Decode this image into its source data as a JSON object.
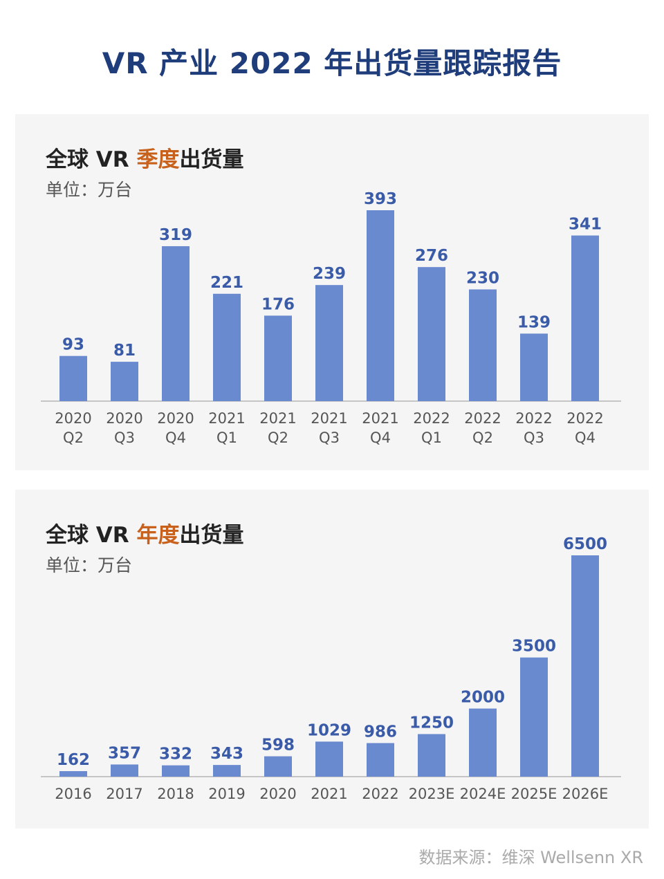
{
  "page_title": "VR 产业 2022 年出货量跟踪报告",
  "source": "数据来源：维深 Wellsenn XR",
  "colors": {
    "bar": "#6a8ad0",
    "label": "#3a5ba8",
    "highlight": "#c8611b",
    "title": "#1f3d7a"
  },
  "chart_data": [
    {
      "type": "bar",
      "title_prefix": "全球 VR ",
      "title_highlight": "季度",
      "title_suffix": "出货量",
      "unit": "单位：万台",
      "categories": [
        "2020\nQ2",
        "2020\nQ3",
        "2020\nQ4",
        "2021\nQ1",
        "2021\nQ2",
        "2021\nQ3",
        "2021\nQ4",
        "2022\nQ1",
        "2022\nQ2",
        "2022\nQ3",
        "2022\nQ4"
      ],
      "values": [
        93,
        81,
        319,
        221,
        176,
        239,
        393,
        276,
        230,
        139,
        341
      ]
    },
    {
      "type": "bar",
      "title_prefix": "全球 VR ",
      "title_highlight": "年度",
      "title_suffix": "出货量",
      "unit": "单位：万台",
      "categories": [
        "2016",
        "2017",
        "2018",
        "2019",
        "2020",
        "2021",
        "2022",
        "2023E",
        "2024E",
        "2025E",
        "2026E"
      ],
      "values": [
        162,
        357,
        332,
        343,
        598,
        1029,
        986,
        1250,
        2000,
        3500,
        6500
      ]
    }
  ]
}
